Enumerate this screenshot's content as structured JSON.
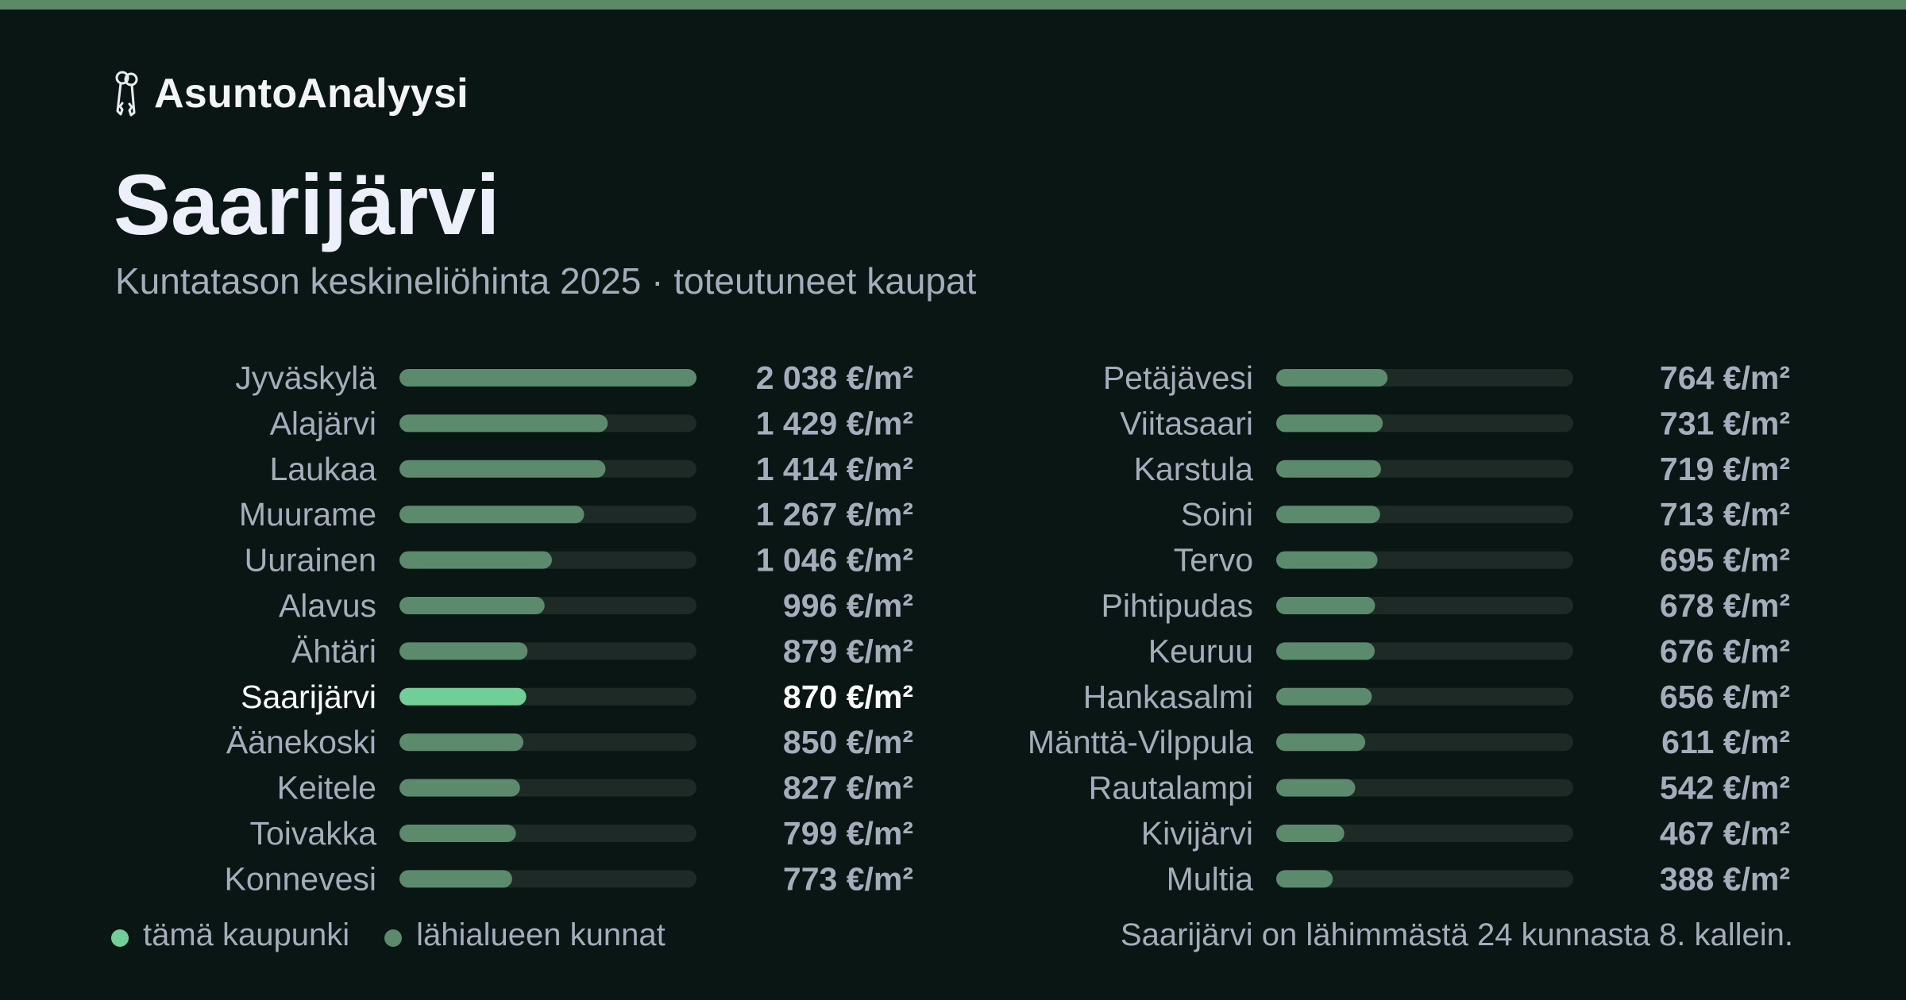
{
  "brand": {
    "name": "AsuntoAnalyysi",
    "icon": "keys-icon"
  },
  "title": "Saarijärvi",
  "subtitle": "Kuntatason keskineliöhinta 2025 · toteutuneet kaupat",
  "colors": {
    "background": "#0a1613",
    "accent_bar": "#5b8a67",
    "highlight": "#6fcf97",
    "neighbor": "#5c8a6c",
    "track": "#1d2a26",
    "text": "#a5adbd",
    "text_highlight": "#ffffff"
  },
  "chart_data": {
    "type": "bar",
    "orientation": "horizontal",
    "unit": "€/m²",
    "highlight": "Saarijärvi",
    "xlim": [
      0,
      2038
    ],
    "categories": [
      "Jyväskylä",
      "Alajärvi",
      "Laukaa",
      "Muurame",
      "Uurainen",
      "Alavus",
      "Ähtäri",
      "Saarijärvi",
      "Äänekoski",
      "Keitele",
      "Toivakka",
      "Konnevesi",
      "Petäjävesi",
      "Viitasaari",
      "Karstula",
      "Soini",
      "Tervo",
      "Pihtipudas",
      "Keuruu",
      "Hankasalmi",
      "Mänttä-Vilppula",
      "Rautalampi",
      "Kivijärvi",
      "Multia"
    ],
    "values": [
      2038,
      1429,
      1414,
      1267,
      1046,
      996,
      879,
      870,
      850,
      827,
      799,
      773,
      764,
      731,
      719,
      713,
      695,
      678,
      676,
      656,
      611,
      542,
      467,
      388
    ],
    "value_labels": [
      "2 038 €/m²",
      "1 429 €/m²",
      "1 414 €/m²",
      "1 267 €/m²",
      "1 046 €/m²",
      "996 €/m²",
      "879 €/m²",
      "870 €/m²",
      "850 €/m²",
      "827 €/m²",
      "799 €/m²",
      "773 €/m²",
      "764 €/m²",
      "731 €/m²",
      "719 €/m²",
      "713 €/m²",
      "695 €/m²",
      "678 €/m²",
      "676 €/m²",
      "656 €/m²",
      "611 €/m²",
      "542 €/m²",
      "467 €/m²",
      "388 €/m²"
    ]
  },
  "legend": {
    "this_city": "tämä kaupunki",
    "neighbors": "lähialueen kunnat"
  },
  "footnote": "Saarijärvi on lähimmästä 24 kunnasta 8. kallein."
}
